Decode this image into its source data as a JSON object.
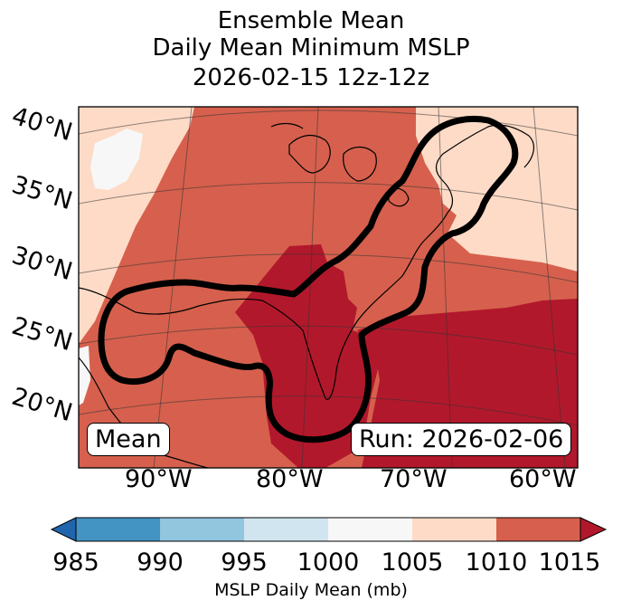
{
  "title": {
    "line1": "Ensemble Mean",
    "line2": "Daily Mean Minimum MSLP",
    "line3": "2026-02-15 12z-12z"
  },
  "map": {
    "lat_labels": [
      "40°N",
      "35°N",
      "30°N",
      "25°N",
      "20°N"
    ],
    "lon_labels": [
      "90°W",
      "80°W",
      "70°W",
      "60°W"
    ],
    "left_box": "Mean",
    "right_box": "Run: 2026-02-06",
    "fill_colors": {
      "lt1000": "#f7f7f7",
      "1005_1010": "#fddbc7",
      "1010_1015": "#d6604d",
      "gt1015": "#b2182b",
      "contour": "#000000"
    }
  },
  "colorbar": {
    "label": "MSLP Daily Mean (mb)",
    "ticks": [
      "985",
      "990",
      "995",
      "1000",
      "1005",
      "1010",
      "1015"
    ],
    "colors": [
      "#2166ac",
      "#4393c3",
      "#92c5de",
      "#d1e5f0",
      "#f7f7f7",
      "#fddbc7",
      "#d6604d",
      "#b2182b"
    ]
  }
}
